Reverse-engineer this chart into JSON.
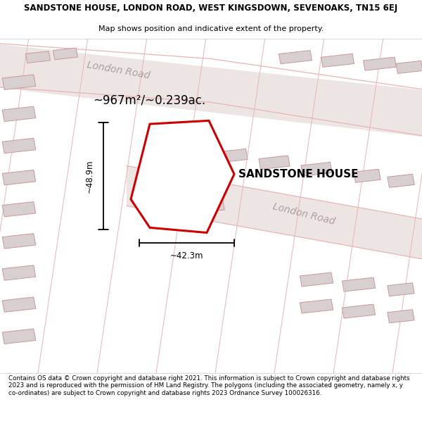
{
  "title_line1": "SANDSTONE HOUSE, LONDON ROAD, WEST KINGSDOWN, SEVENOAKS, TN15 6EJ",
  "title_line2": "Map shows position and indicative extent of the property.",
  "area_label": "~967m²/~0.239ac.",
  "property_label": "SANDSTONE HOUSE",
  "dim_vertical": "~48.9m",
  "dim_horizontal": "~42.3m",
  "road_label1": "London Road",
  "road_label2": "London Road",
  "footer_text": "Contains OS data © Crown copyright and database right 2021. This information is subject to Crown copyright and database rights 2023 and is reproduced with the permission of HM Land Registry. The polygons (including the associated geometry, namely x, y co-ordinates) are subject to Crown copyright and database rights 2023 Ordnance Survey 100026316.",
  "map_bg": "#f7f0f0",
  "road_color": "#e8b4b4",
  "road_fill": "#ede4e4",
  "building_fill": "#d8d0d0",
  "building_edge": "#c89898",
  "property_fill": "#ffffff",
  "property_edge": "#cc0000",
  "road_label_color": "#b0a0a0",
  "title_color": "#000000",
  "dim_color": "#000000"
}
